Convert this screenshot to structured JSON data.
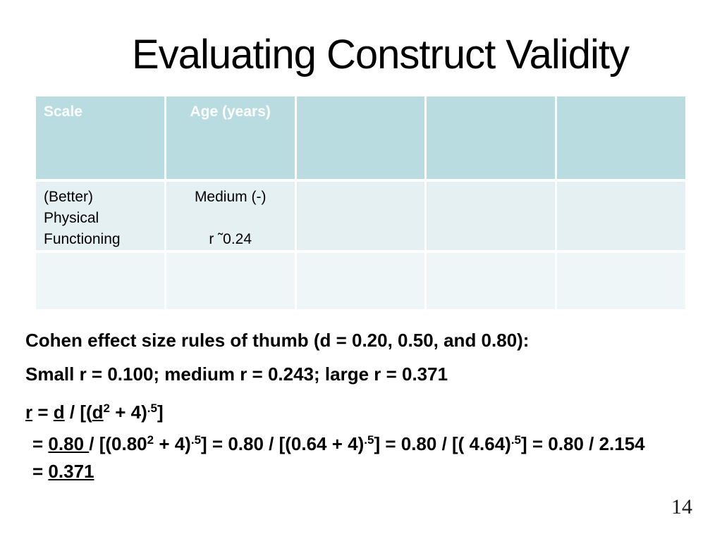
{
  "slide": {
    "title": "Evaluating Construct Validity",
    "page_number": "14"
  },
  "colors": {
    "header_bg": "#b9dce0",
    "header_text": "#ffffff",
    "row1_bg": "#e5f0f2",
    "row2_bg": "#eef6f7",
    "body_text": "#000000"
  },
  "table": {
    "header_cells": [
      "Scale",
      "Age (years)",
      "",
      "",
      ""
    ],
    "rows": [
      [
        [
          "(Better)",
          "Physical",
          "Functioning"
        ],
        [
          "Medium (-)",
          "",
          "r ˜0.24"
        ],
        [],
        [],
        []
      ],
      [
        [],
        [],
        [],
        [],
        []
      ]
    ]
  },
  "notes": {
    "rule_line": "Cohen effect size rules of thumb (d = 0.20, 0.50, and 0.80):",
    "thresholds_line": "Small r = 0.100; medium r = 0.243; large r = 0.371",
    "formula_lines": [
      [
        {
          "t": "r",
          "u": true
        },
        {
          "t": " = "
        },
        {
          "t": "d",
          "u": true
        },
        {
          "t": " / [("
        },
        {
          "t": "d",
          "u": true
        },
        {
          "t": "2",
          "s": true
        },
        {
          "t": " + 4)"
        },
        {
          "t": ".5",
          "s": true
        },
        {
          "t": "]"
        }
      ],
      [
        {
          "t": "= "
        },
        {
          "t": "0.80 ",
          "u": true
        },
        {
          "t": "/ [(0.80"
        },
        {
          "t": "2",
          "s": true
        },
        {
          "t": " + 4)"
        },
        {
          "t": ".5",
          "s": true
        },
        {
          "t": "] = 0.80 / [(0.64 + 4)"
        },
        {
          "t": ".5",
          "s": true
        },
        {
          "t": "] = 0.80 / [( 4.64)"
        },
        {
          "t": ".5",
          "s": true
        },
        {
          "t": "] = 0.80 / 2.154"
        }
      ],
      [
        {
          "t": "= "
        },
        {
          "t": "0.371",
          "u": true
        }
      ]
    ]
  }
}
